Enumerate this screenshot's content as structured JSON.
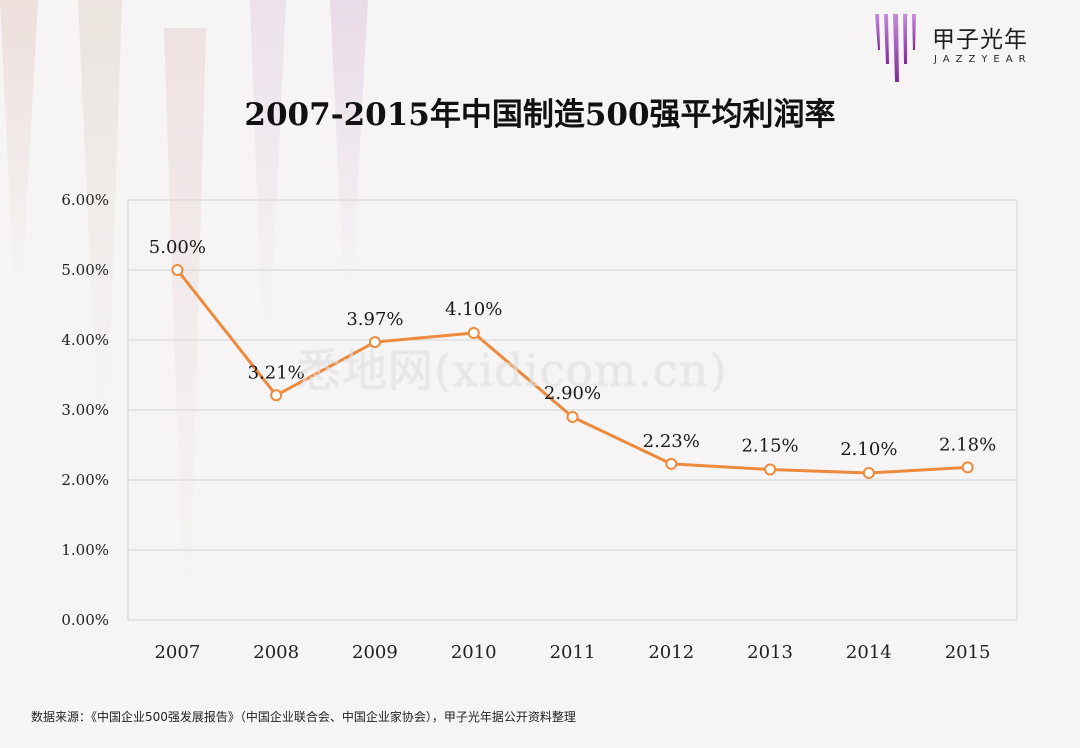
{
  "chart_data": {
    "type": "line",
    "title": "2007-2015年中国制造500强平均利润率",
    "categories": [
      "2007",
      "2008",
      "2009",
      "2010",
      "2011",
      "2012",
      "2013",
      "2014",
      "2015"
    ],
    "values": [
      5.0,
      3.21,
      3.97,
      4.1,
      2.9,
      2.23,
      2.15,
      2.1,
      2.18
    ],
    "value_labels": [
      "5.00%",
      "3.21%",
      "3.97%",
      "4.10%",
      "2.90%",
      "2.23%",
      "2.15%",
      "2.10%",
      "2.18%"
    ],
    "y_tick_values": [
      0,
      1,
      2,
      3,
      4,
      5,
      6
    ],
    "y_tick_labels": [
      "0.00%",
      "1.00%",
      "2.00%",
      "3.00%",
      "4.00%",
      "5.00%",
      "6.00%"
    ],
    "ylim": [
      0,
      6
    ],
    "grid": true,
    "xlabel": "",
    "ylabel": "",
    "line_color": "#ed8a3d",
    "marker_fill": "#ffffff",
    "grid_color": "#d4d4d4"
  },
  "logo": {
    "cn": "甲子光年",
    "en": "JAZZYEAR",
    "icon": "jazzyear-logo-icon"
  },
  "source": "数据来源：《中国企业500强发展报告》（中国企业联合会、中国企业家协会），甲子光年据公开资料整理",
  "watermark": "悉地网(xidicom.cn)",
  "colors": {
    "background": "#f6f4f5",
    "title": "#111111",
    "line": "#ed8a3d"
  }
}
